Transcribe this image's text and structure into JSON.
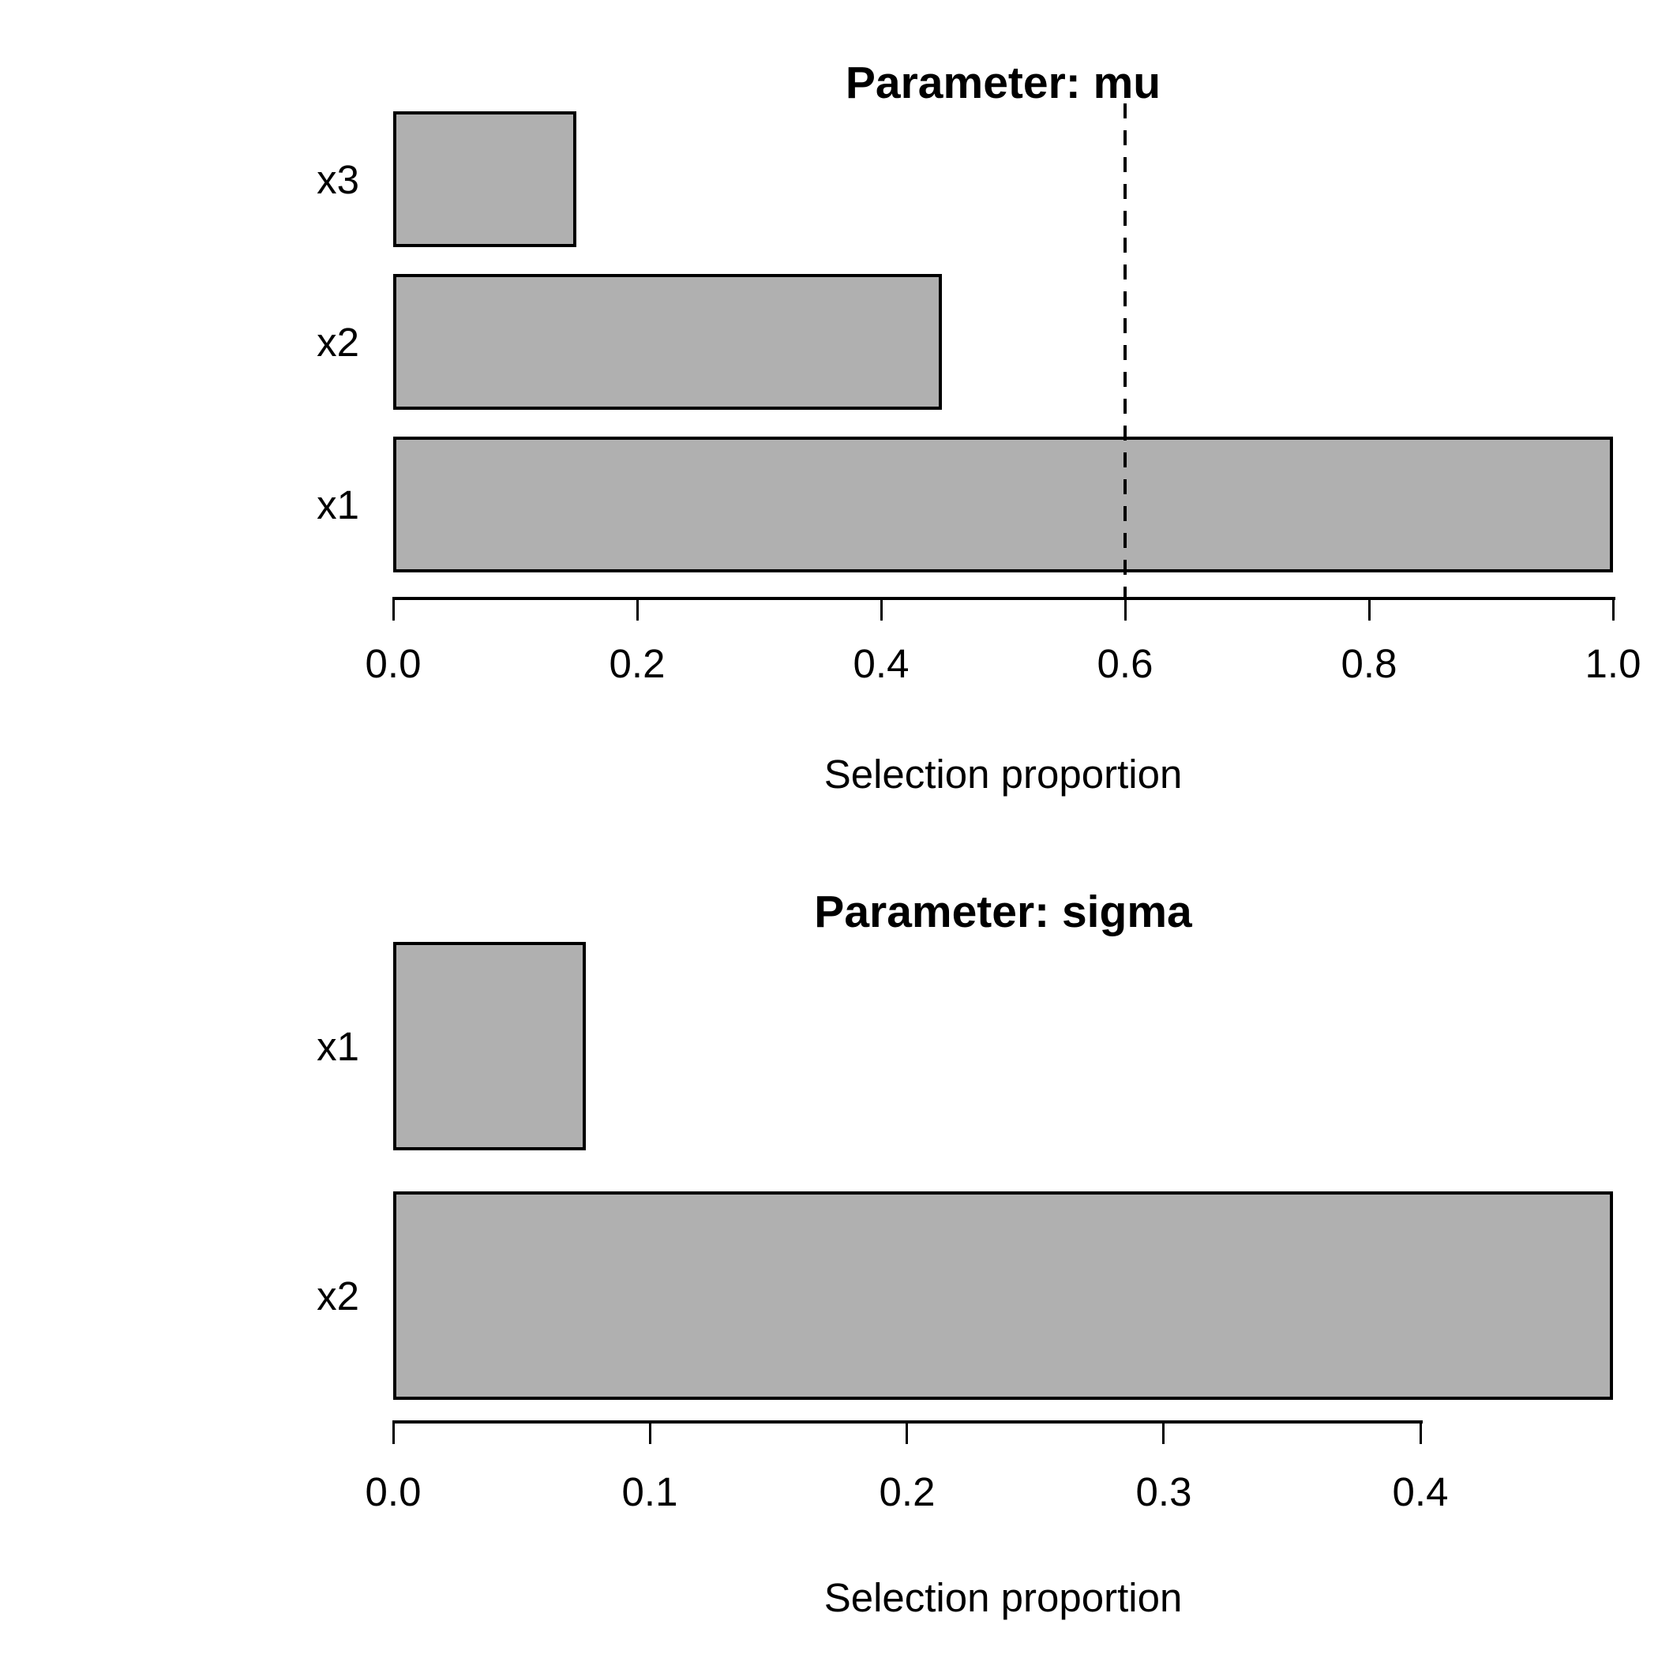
{
  "figure": {
    "background": "#ffffff",
    "text_color": "#000000"
  },
  "chart_data": [
    {
      "type": "bar",
      "orientation": "horizontal",
      "title": "Parameter: mu",
      "xlabel": "Selection proportion",
      "categories": [
        "x3",
        "x2",
        "x1"
      ],
      "values": [
        0.15,
        0.45,
        1.0
      ],
      "xlim": [
        0,
        1.0
      ],
      "xticks": [
        0.0,
        0.2,
        0.4,
        0.6,
        0.8,
        1.0
      ],
      "xtick_labels": [
        "0.0",
        "0.2",
        "0.4",
        "0.6",
        "0.8",
        "1.0"
      ],
      "axis_end": 1.0,
      "reference_line": {
        "value": 0.6,
        "style": "dashed",
        "color": "#000000"
      },
      "bar_fill": "#b0b0b0",
      "bar_border": "#000000",
      "grid": false,
      "legend": null
    },
    {
      "type": "bar",
      "orientation": "horizontal",
      "title": "Parameter: sigma",
      "xlabel": "Selection proportion",
      "categories": [
        "x1",
        "x2"
      ],
      "values": [
        0.075,
        0.475
      ],
      "xlim": [
        0,
        0.475
      ],
      "xticks": [
        0.0,
        0.1,
        0.2,
        0.3,
        0.4
      ],
      "xtick_labels": [
        "0.0",
        "0.1",
        "0.2",
        "0.3",
        "0.4"
      ],
      "axis_end": 0.4,
      "reference_line": null,
      "bar_fill": "#b0b0b0",
      "bar_border": "#000000",
      "grid": false,
      "legend": null
    }
  ]
}
